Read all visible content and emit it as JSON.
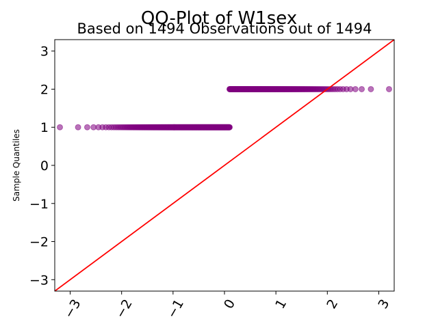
{
  "chart_data": {
    "type": "scatter",
    "title": "QQ-Plot of W1sex",
    "subtitle": "Based on 1494 Observations out of 1494",
    "xlabel": "",
    "ylabel": "Sample Quantiles",
    "xlim": [
      -3.3,
      3.3
    ],
    "ylim": [
      -3.3,
      3.3
    ],
    "x_ticks": [
      -3,
      -2,
      -1,
      0,
      1,
      2,
      3
    ],
    "x_tick_labels": [
      "−3",
      "−2",
      "−1",
      "0",
      "1",
      "2",
      "3"
    ],
    "y_ticks": [
      -3,
      -2,
      -1,
      0,
      1,
      2,
      3
    ],
    "y_tick_labels": [
      "−3",
      "−2",
      "−1",
      "0",
      "1",
      "2",
      "3"
    ],
    "grid": false,
    "reference_line": {
      "from": [
        -3.3,
        -3.3
      ],
      "to": [
        3.3,
        3.3
      ],
      "color": "#ff0000"
    },
    "series": [
      {
        "y": 1,
        "x_min": -3.2,
        "x_max": 0.1,
        "color": "#800080",
        "opacity": 0.55
      },
      {
        "y": 2,
        "x_min": 0.1,
        "x_max": 3.2,
        "color": "#800080",
        "opacity": 0.55
      }
    ]
  }
}
